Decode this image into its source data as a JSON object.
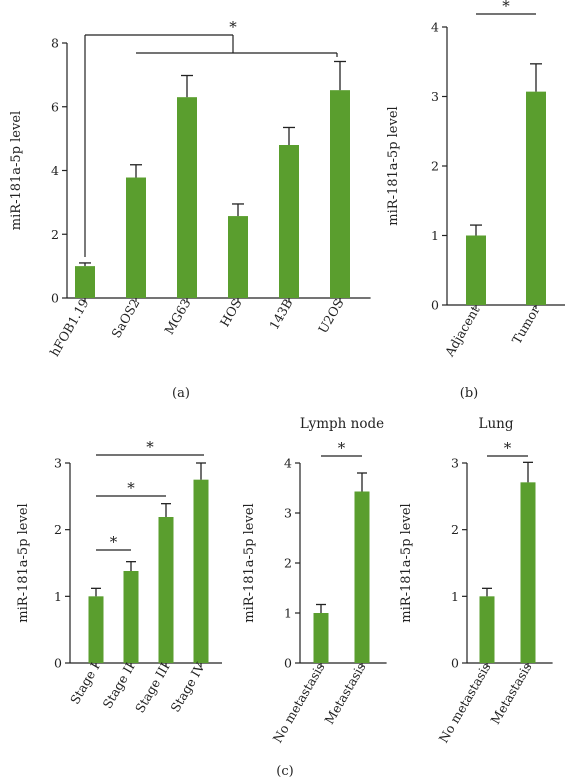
{
  "colors": {
    "bar": "#5a9e2e",
    "axis": "#222222"
  },
  "panel_labels": [
    "(a)",
    "(b)",
    "(c)"
  ],
  "chart_data": [
    {
      "id": "a",
      "type": "bar",
      "ylabel": "miR-181a-5p level",
      "ylim": [
        0,
        8
      ],
      "yticks": [
        "0",
        "2",
        "4",
        "6",
        "8"
      ],
      "categories": [
        "hFOB1.19",
        "SaOS2",
        "MG63",
        "HOS",
        "143B",
        "U2OS"
      ],
      "values": [
        1.0,
        3.78,
        6.3,
        2.57,
        4.8,
        6.52
      ],
      "errors": [
        0.1,
        0.4,
        0.68,
        0.38,
        0.55,
        0.9
      ],
      "significance": [
        {
          "label": "*"
        }
      ]
    },
    {
      "id": "b",
      "type": "bar",
      "ylabel": "miR-181a-5p level",
      "ylim": [
        0,
        4
      ],
      "yticks": [
        "0",
        "1",
        "2",
        "3",
        "4"
      ],
      "categories": [
        "Adjacent",
        "Tumor"
      ],
      "values": [
        1.0,
        3.07
      ],
      "errors": [
        0.15,
        0.4
      ],
      "significance": [
        {
          "label": "*"
        }
      ]
    },
    {
      "id": "c1",
      "type": "bar",
      "ylabel": "miR-181a-5p level",
      "ylim": [
        0,
        3
      ],
      "yticks": [
        "0",
        "1",
        "2",
        "3"
      ],
      "categories": [
        "Stage I",
        "Stage II",
        "Stage III",
        "Stage IV"
      ],
      "values": [
        1.0,
        1.38,
        2.19,
        2.75
      ],
      "errors": [
        0.12,
        0.14,
        0.2,
        0.25
      ],
      "significance": [
        {
          "label": "*"
        },
        {
          "label": "*"
        },
        {
          "label": "*"
        }
      ]
    },
    {
      "id": "c2",
      "type": "bar",
      "title": "Lymph node",
      "ylabel": "miR-181a-5p level",
      "ylim": [
        0,
        4
      ],
      "yticks": [
        "0",
        "1",
        "2",
        "3",
        "4"
      ],
      "categories": [
        "No metastasis",
        "Metastasis"
      ],
      "values": [
        1.0,
        3.43
      ],
      "errors": [
        0.17,
        0.37
      ],
      "significance": [
        {
          "label": "*"
        }
      ]
    },
    {
      "id": "c3",
      "type": "bar",
      "title": "Lung",
      "ylabel": "miR-181a-5p level",
      "ylim": [
        0,
        3
      ],
      "yticks": [
        "0",
        "1",
        "2",
        "3"
      ],
      "categories": [
        "No metastasis",
        "Metastasis"
      ],
      "values": [
        1.0,
        2.71
      ],
      "errors": [
        0.12,
        0.3
      ],
      "significance": [
        {
          "label": "*"
        }
      ]
    }
  ]
}
